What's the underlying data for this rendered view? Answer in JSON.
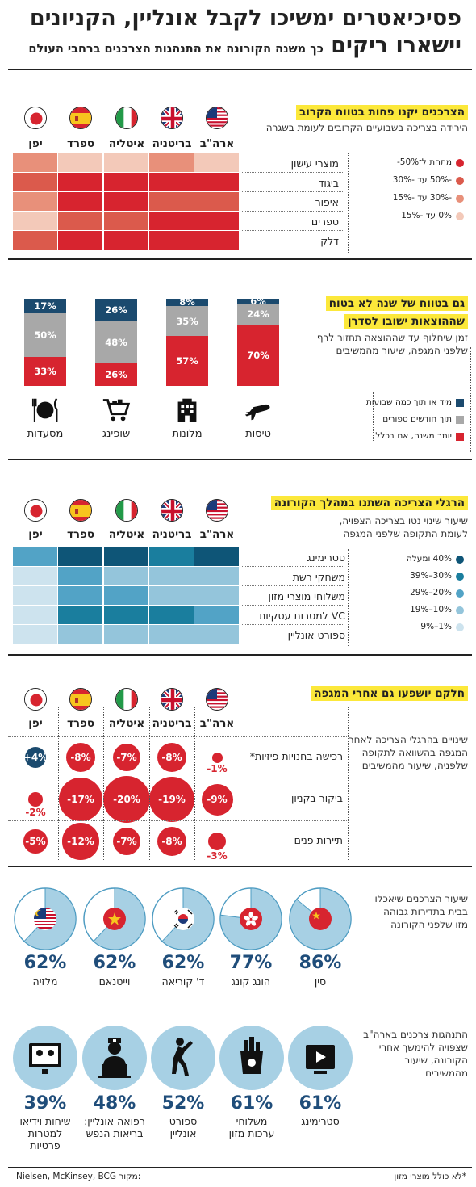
{
  "header": {
    "title_line1": "פסיכיאטרים ימשיכו לקבל אונליין, הקניונים",
    "title_line2": "יישארו ריקים",
    "title_sub": "כך משנה הקורונה את התנהגות הצרכנים ברחבי העולם"
  },
  "countries": [
    "ארה\"ב",
    "בריטניה",
    "איטליה",
    "ספרד",
    "יפן"
  ],
  "colors": {
    "red": "#d7242f",
    "navy": "#1b4a6e",
    "gray": "#a8a8a8",
    "h1": "#d7242f",
    "h2": "#db5a4c",
    "h3": "#e8907a",
    "h4": "#f3c9b9",
    "b1": "#0e5577",
    "b2": "#1a7e9e",
    "b3": "#52a3c6",
    "b4": "#94c5db",
    "b5": "#cde3ee"
  },
  "section1": {
    "heading": "הצרכנים יקנו פחות בטווח הקרוב",
    "sub": "הירידה בצריכה בשבועיים הקרובים לעומת בשגרה",
    "rows": [
      "מוצרי עישון",
      "ביגוד",
      "איפור",
      "ספרים",
      "דלק"
    ],
    "legend": [
      "מתחת ל־50%-",
      "-50% עד -30%",
      "-30% עד -15%",
      "0% עד -15%"
    ],
    "chart_data": {
      "type": "heatmap",
      "note": "levels: 1 = below -50%, 2 = -50% to -30%, 3 = -30% to -15%, 4 = -15% to 0%",
      "rows": [
        "מוצרי עישון",
        "ביגוד",
        "איפור",
        "ספרים",
        "דלק"
      ],
      "columns": [
        "ארה\"ב",
        "בריטניה",
        "איטליה",
        "ספרד",
        "יפן"
      ],
      "levels": [
        [
          4,
          3,
          4,
          4,
          3
        ],
        [
          1,
          1,
          1,
          1,
          2
        ],
        [
          2,
          2,
          1,
          1,
          3
        ],
        [
          1,
          1,
          2,
          2,
          4
        ],
        [
          1,
          1,
          1,
          1,
          2
        ]
      ]
    }
  },
  "section2": {
    "heading_line1": "גם בטווח של שנה לא בטוח",
    "heading_line2": "שההוצאות ישובו לסדרן",
    "sub_line1": "זמן שיחלוף עד שההוצאה תחזור לרף",
    "sub_line2": "שלפני המגפה, שיעור מהמשיבים",
    "legend": [
      "מיד או תוך כמה שבועות",
      "תוך חודשים ספורים",
      "יותר משנה, אם בכלל"
    ],
    "chart_data": {
      "type": "bar",
      "stacked": true,
      "categories": [
        "טיסות",
        "מלונות",
        "שופינג",
        "מסעדות"
      ],
      "series": [
        {
          "name": "מיד או תוך כמה שבועות",
          "values": [
            6,
            8,
            26,
            17
          ]
        },
        {
          "name": "תוך חודשים ספורים",
          "values": [
            24,
            35,
            48,
            50
          ]
        },
        {
          "name": "יותר משנה, אם בכלל",
          "values": [
            70,
            57,
            26,
            33
          ]
        }
      ],
      "labels": [
        [
          "6%",
          "24%",
          "70%"
        ],
        [
          "8%",
          "35%",
          "57%"
        ],
        [
          "26%",
          "48%",
          "26%"
        ],
        [
          "17%",
          "50%",
          "33%"
        ]
      ]
    }
  },
  "section3": {
    "heading": "הרגלי הצריכה השתנו במהלך הקורונה",
    "sub_line1": "שיעור שינוי נטו בצריכה הצפויה,",
    "sub_line2": "לעומת התקופה שלפני המגפה",
    "rows": [
      "סטרימינג",
      "משחקי רשת",
      "משלוחי מוצרי מזון",
      "VC למטרות עסקיות",
      "ספורט אונליין"
    ],
    "legend": [
      "40% ומעלה",
      "30%–39%",
      "20%–29%",
      "10%–19%",
      "1%–9%"
    ],
    "chart_data": {
      "type": "heatmap",
      "note": "levels: 1 = 40%+, 2 = 30-39%, 3 = 20-29%, 4 = 10-19%, 5 = 1-9%",
      "rows": [
        "סטרימינג",
        "משחקי רשת",
        "משלוחי מוצרי מזון",
        "VC למטרות עסקיות",
        "ספורט אונליין"
      ],
      "columns": [
        "ארה\"ב",
        "בריטניה",
        "איטליה",
        "ספרד",
        "יפן"
      ],
      "levels": [
        [
          1,
          2,
          1,
          1,
          3
        ],
        [
          4,
          4,
          4,
          3,
          5
        ],
        [
          4,
          4,
          3,
          3,
          5
        ],
        [
          3,
          2,
          2,
          2,
          5
        ],
        [
          4,
          4,
          4,
          4,
          5
        ]
      ]
    }
  },
  "section4": {
    "heading": "חלקם יושפעו גם אחרי המגפה",
    "sub_line1": "שינויים בהרגלי הצריכה לאחר",
    "sub_line2": "המגפה בהשוואה לתקופה",
    "sub_line3": "שלפניה, שיעור מהמשיבים",
    "rows": [
      "רכישה בחנויות פיזיות*",
      "ביקור בקניון",
      "תיירות פנים"
    ],
    "chart_data": {
      "type": "scatter",
      "note": "bubble size proportional to value",
      "rows": [
        "רכישה בחנויות פיזיות*",
        "ביקור בקניון",
        "תיירות פנים"
      ],
      "columns": [
        "ארה\"ב",
        "בריטניה",
        "איטליה",
        "ספרד",
        "יפן"
      ],
      "values": [
        [
          -1,
          -8,
          -7,
          -8,
          4
        ],
        [
          -9,
          -19,
          -20,
          -17,
          -2
        ],
        [
          -3,
          -8,
          -7,
          -12,
          -5
        ]
      ],
      "labels": [
        [
          "-1%",
          "-8%",
          "-7%",
          "-8%",
          "+4%"
        ],
        [
          "-9%",
          "-19%",
          "-20%",
          "-17%",
          "-2%"
        ],
        [
          "-3%",
          "-8%",
          "-7%",
          "-12%",
          "-5%"
        ]
      ]
    }
  },
  "section5": {
    "sub_line1": "שיעור הצרכנים שיאכלו",
    "sub_line2": "בבית בתדירות גבוהה",
    "sub_line3": "מזו שלפני הקורונה",
    "chart_data": {
      "type": "pie",
      "categories": [
        "סין",
        "הונג קונג",
        "ד' קוריאה",
        "וייטנאם",
        "מלזיה"
      ],
      "values": [
        86,
        77,
        62,
        62,
        62
      ],
      "labels": [
        "86%",
        "77%",
        "62%",
        "62%",
        "62%"
      ]
    }
  },
  "section6": {
    "sub_line1": "התנהגות צרכנים בארה\"ב",
    "sub_line2": "שצפויה להימשך אחרי",
    "sub_line3": "הקורונה, שיעור",
    "sub_line4": "מהמשיבים",
    "items": [
      {
        "value": "61%",
        "l1": "סטרימינג",
        "l2": ""
      },
      {
        "value": "61%",
        "l1": "משלוחי",
        "l2": "ערכות מזון"
      },
      {
        "value": "52%",
        "l1": "ספורט",
        "l2": "אונליין"
      },
      {
        "value": "48%",
        "l1": "רפואה אונליין:",
        "l2": "בריאות הנפש"
      },
      {
        "value": "39%",
        "l1": "שיחות וידיאו",
        "l2": "למטרות",
        "l3": "פרטיות"
      }
    ]
  },
  "footer": {
    "note": "*לא כולל מוצרי מזון",
    "source_label": "מקור:",
    "source": "Nielsen, McKinsey, BCG"
  }
}
